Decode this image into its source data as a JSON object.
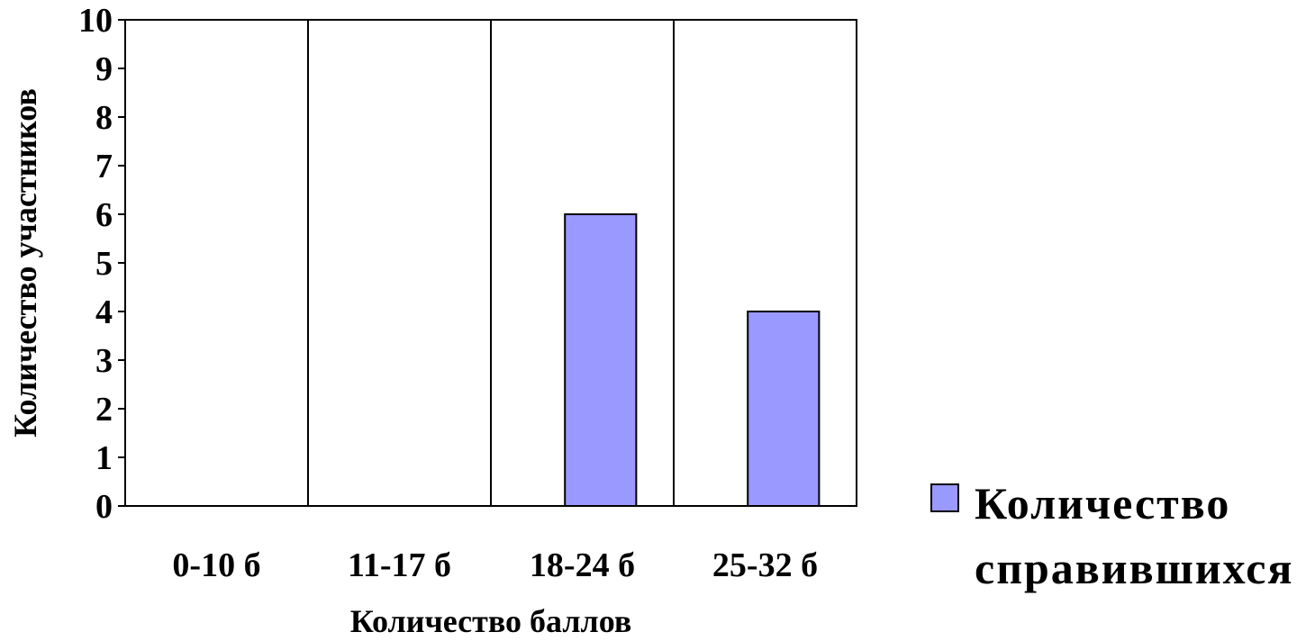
{
  "chart_data": {
    "type": "bar",
    "categories": [
      "0-10 б",
      "11-17 б",
      "18-24 б",
      "25-32 б"
    ],
    "series": [
      {
        "name": "Количество справившихся",
        "values": [
          0,
          0,
          6,
          4
        ],
        "color": "#9999ff"
      }
    ],
    "xlabel": "Количество баллов",
    "ylabel": "Количество участников",
    "ylim": [
      0,
      10
    ],
    "yticks": [
      0,
      1,
      2,
      3,
      4,
      5,
      6,
      7,
      8,
      9,
      10
    ],
    "grid": "vertical category separators",
    "legend": "right",
    "legend_lines": [
      "Количество",
      "справившихся"
    ]
  }
}
